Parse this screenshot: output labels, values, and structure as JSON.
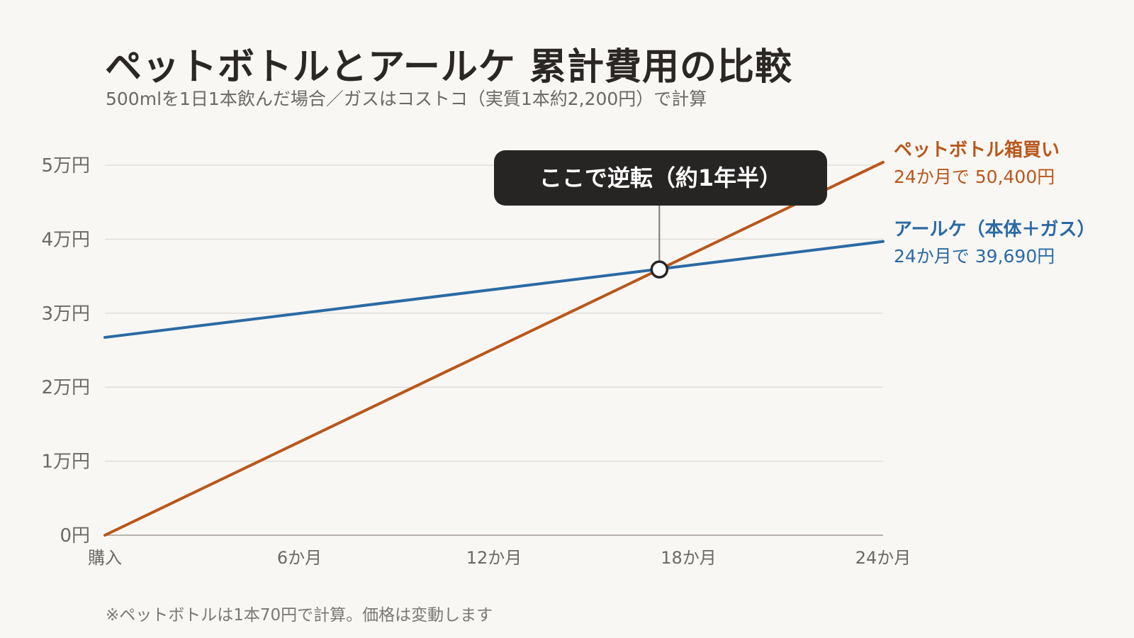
{
  "title": "ペットボトルとアールケ 累計費用の比較",
  "subtitle": "500mlを1日1本飲んだ場合／ガスはコストコ（実質1本約2,200円）で計算",
  "note": "※ペットボトルは1本70円で計算。価格は変動します",
  "colors": {
    "pet": "#b9571a",
    "arke": "#2a6aa5",
    "grid": "#e2ddd7",
    "axis": "#b7b2ad",
    "callout_bg": "#272524",
    "background": "#f9f7f4"
  },
  "chart_data": {
    "type": "line",
    "x": [
      0,
      24
    ],
    "x_tick_values": [
      0,
      6,
      12,
      18,
      24
    ],
    "x_tick_labels": [
      "購入",
      "6か月",
      "12か月",
      "18か月",
      "24か月"
    ],
    "y_tick_values": [
      0,
      10000,
      20000,
      30000,
      40000,
      50000
    ],
    "y_tick_labels": [
      "0円",
      "1万円",
      "2万円",
      "3万円",
      "4万円",
      "5万円"
    ],
    "xlim": [
      0,
      24
    ],
    "ylim": [
      0,
      50000
    ],
    "grid": true,
    "series": [
      {
        "key": "pet",
        "name": "ペットボトル箱買い",
        "end_label": "24か月で 50,400円",
        "values": [
          0,
          50400
        ]
      },
      {
        "key": "arke",
        "name": "アールケ（本体＋ガス）",
        "end_label": "24か月で 39,690円",
        "values": [
          26730,
          39690
        ]
      }
    ],
    "annotation": {
      "text": "ここで逆転（約1年半）",
      "x": 17.1,
      "y": 35910
    }
  }
}
